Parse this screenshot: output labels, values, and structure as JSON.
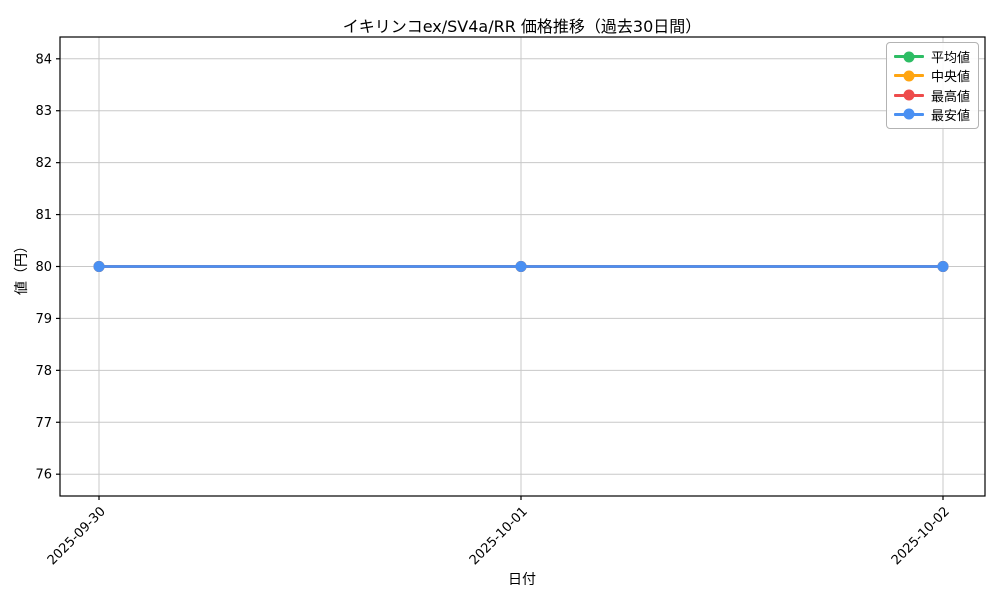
{
  "page": {
    "background": "#ffffff"
  },
  "chart_data": {
    "type": "line",
    "title": "イキリンコex/SV4a/RR 価格推移（過去30日間）",
    "xlabel": "日付",
    "ylabel": "値（円）",
    "x": [
      "2025-09-30",
      "2025-10-01",
      "2025-10-02"
    ],
    "series": [
      {
        "name": "平均値",
        "color": "#2dbd64",
        "values": [
          80,
          80,
          80
        ]
      },
      {
        "name": "中央値",
        "color": "#ffa511",
        "values": [
          80,
          80,
          80
        ]
      },
      {
        "name": "最高値",
        "color": "#ee4b4b",
        "values": [
          80,
          80,
          80
        ]
      },
      {
        "name": "最安値",
        "color": "#4a90f2",
        "values": [
          80,
          80,
          80
        ]
      }
    ],
    "ylim": [
      75.58,
      84.42
    ],
    "yticks": [
      76,
      77,
      78,
      79,
      80,
      81,
      82,
      83,
      84
    ],
    "grid": true,
    "grid_color": "#c8c8c8",
    "axis_color": "#000000",
    "legend_position": "upper right",
    "x_tick_rotation_deg": 45
  }
}
